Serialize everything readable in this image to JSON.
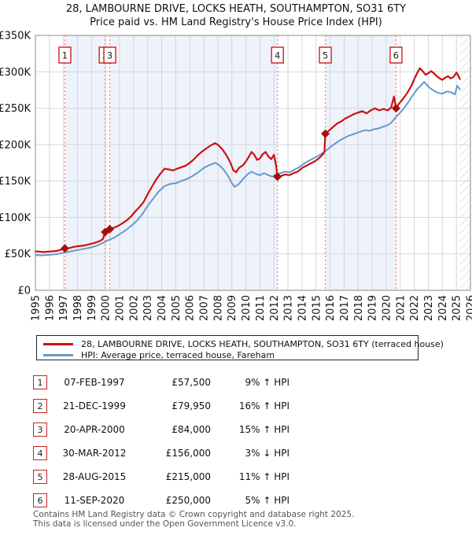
{
  "header": {
    "line1": "28, LAMBOURNE DRIVE, LOCKS HEATH, SOUTHAMPTON, SO31 6TY",
    "line2": "Price paid vs. HM Land Registry's House Price Index (HPI)"
  },
  "chart_data": {
    "type": "line",
    "title": "28, LAMBOURNE DRIVE, LOCKS HEATH, SOUTHAMPTON, SO31 6TY",
    "subtitle": "Price paid vs. HM Land Registry's House Price Index (HPI)",
    "x_range": [
      1995,
      2026
    ],
    "y_range_k": [
      0,
      350
    ],
    "grid": true,
    "x_ticks": [
      1995,
      1996,
      1997,
      1998,
      1999,
      2000,
      2001,
      2002,
      2003,
      2004,
      2005,
      2006,
      2007,
      2008,
      2009,
      2010,
      2011,
      2012,
      2013,
      2014,
      2015,
      2016,
      2017,
      2018,
      2019,
      2020,
      2021,
      2022,
      2023,
      2024,
      2025,
      2026
    ],
    "y_ticks": [
      {
        "v": 0,
        "label": "£0"
      },
      {
        "v": 50,
        "label": "£50K"
      },
      {
        "v": 100,
        "label": "£100K"
      },
      {
        "v": 150,
        "label": "£150K"
      },
      {
        "v": 200,
        "label": "£200K"
      },
      {
        "v": 250,
        "label": "£250K"
      },
      {
        "v": 300,
        "label": "£300K"
      },
      {
        "v": 350,
        "label": "£350K"
      }
    ],
    "colors": {
      "price_line": "#cc1111",
      "marker": "#aa0c0c",
      "hpi_line": "#6699cc",
      "dashed_event": "#f08080",
      "grid_line": "#d4d7dc",
      "plot_border": "#8a8a8a",
      "ownership_band": "#eef2fa",
      "hatch_line": "#c9c9c9",
      "flag_border": "#cc2020",
      "flag_text": "#222222"
    },
    "ownership_bands": [
      [
        1997.1,
        1999.97
      ],
      [
        2000.3,
        2012.25
      ],
      [
        2015.66,
        2020.7
      ]
    ],
    "future_hatch": [
      2025.25,
      2026
    ],
    "sales": [
      {
        "n": "1",
        "x": 1997.1,
        "price_k": 57.5
      },
      {
        "n": "2",
        "x": 1999.97,
        "price_k": 79.95
      },
      {
        "n": "3",
        "x": 2000.3,
        "price_k": 84
      },
      {
        "n": "4",
        "x": 2012.25,
        "price_k": 156
      },
      {
        "n": "5",
        "x": 2015.66,
        "price_k": 215
      },
      {
        "n": "6",
        "x": 2020.7,
        "price_k": 250
      }
    ],
    "series": [
      {
        "name": "28, LAMBOURNE DRIVE, LOCKS HEATH, SOUTHAMPTON, SO31 6TY (terraced house)",
        "color": "#cc1111",
        "width": 2.2,
        "points": [
          [
            1995,
            53.5
          ],
          [
            1995.3,
            53
          ],
          [
            1995.6,
            52.5
          ],
          [
            1995.9,
            53
          ],
          [
            1996.2,
            53.5
          ],
          [
            1996.5,
            54
          ],
          [
            1996.8,
            55.5
          ],
          [
            1997.1,
            57.5
          ],
          [
            1997.4,
            58
          ],
          [
            1997.7,
            59.5
          ],
          [
            1998,
            60.5
          ],
          [
            1998.3,
            61
          ],
          [
            1998.6,
            62
          ],
          [
            1998.9,
            63.5
          ],
          [
            1999.2,
            65
          ],
          [
            1999.5,
            67
          ],
          [
            1999.8,
            70
          ],
          [
            1999.97,
            80
          ],
          [
            2000.3,
            84
          ],
          [
            2000.6,
            86
          ],
          [
            2000.9,
            88.5
          ],
          [
            2001.2,
            92
          ],
          [
            2001.5,
            96
          ],
          [
            2001.8,
            101
          ],
          [
            2002.1,
            108
          ],
          [
            2002.4,
            114
          ],
          [
            2002.7,
            121
          ],
          [
            2003,
            132
          ],
          [
            2003.3,
            142
          ],
          [
            2003.6,
            152
          ],
          [
            2003.9,
            160
          ],
          [
            2004.2,
            167
          ],
          [
            2004.5,
            166
          ],
          [
            2004.8,
            164.5
          ],
          [
            2005.1,
            167
          ],
          [
            2005.4,
            169
          ],
          [
            2005.7,
            171
          ],
          [
            2006,
            175
          ],
          [
            2006.3,
            180
          ],
          [
            2006.6,
            186
          ],
          [
            2006.9,
            191
          ],
          [
            2007.2,
            195
          ],
          [
            2007.5,
            199
          ],
          [
            2007.8,
            202
          ],
          [
            2008,
            200
          ],
          [
            2008.3,
            194
          ],
          [
            2008.6,
            186
          ],
          [
            2008.9,
            175
          ],
          [
            2009.1,
            165
          ],
          [
            2009.3,
            162
          ],
          [
            2009.5,
            168
          ],
          [
            2009.8,
            172
          ],
          [
            2010,
            177
          ],
          [
            2010.2,
            183
          ],
          [
            2010.4,
            190
          ],
          [
            2010.6,
            186
          ],
          [
            2010.8,
            179
          ],
          [
            2011,
            181
          ],
          [
            2011.2,
            187
          ],
          [
            2011.4,
            190
          ],
          [
            2011.6,
            184
          ],
          [
            2011.8,
            180
          ],
          [
            2012,
            186
          ],
          [
            2012.15,
            172
          ],
          [
            2012.25,
            156
          ],
          [
            2012.5,
            157
          ],
          [
            2012.8,
            159
          ],
          [
            2013.1,
            158
          ],
          [
            2013.4,
            161
          ],
          [
            2013.7,
            163
          ],
          [
            2014,
            168
          ],
          [
            2014.3,
            171
          ],
          [
            2014.6,
            174
          ],
          [
            2014.9,
            177
          ],
          [
            2015.2,
            181
          ],
          [
            2015.45,
            186
          ],
          [
            2015.6,
            190
          ],
          [
            2015.66,
            215
          ],
          [
            2015.9,
            219
          ],
          [
            2016.2,
            224
          ],
          [
            2016.5,
            229
          ],
          [
            2016.8,
            232
          ],
          [
            2017.1,
            236
          ],
          [
            2017.4,
            239
          ],
          [
            2017.7,
            242
          ],
          [
            2018,
            244
          ],
          [
            2018.3,
            246
          ],
          [
            2018.6,
            243
          ],
          [
            2018.9,
            247
          ],
          [
            2019.2,
            250
          ],
          [
            2019.5,
            247
          ],
          [
            2019.8,
            249
          ],
          [
            2020.1,
            247
          ],
          [
            2020.35,
            251
          ],
          [
            2020.55,
            266
          ],
          [
            2020.7,
            250
          ],
          [
            2020.9,
            256
          ],
          [
            2021.2,
            263
          ],
          [
            2021.5,
            271
          ],
          [
            2021.8,
            281
          ],
          [
            2022,
            290
          ],
          [
            2022.2,
            298
          ],
          [
            2022.4,
            305
          ],
          [
            2022.6,
            301
          ],
          [
            2022.8,
            296
          ],
          [
            2023,
            298
          ],
          [
            2023.2,
            301
          ],
          [
            2023.4,
            298
          ],
          [
            2023.6,
            294
          ],
          [
            2023.8,
            291
          ],
          [
            2024,
            289
          ],
          [
            2024.2,
            292
          ],
          [
            2024.4,
            294
          ],
          [
            2024.6,
            291
          ],
          [
            2024.8,
            293
          ],
          [
            2025,
            299
          ],
          [
            2025.1,
            296
          ],
          [
            2025.25,
            290
          ]
        ]
      },
      {
        "name": "HPI: Average price, terraced house, Fareham",
        "color": "#6699cc",
        "width": 2,
        "points": [
          [
            1995,
            48.5
          ],
          [
            1995.4,
            48
          ],
          [
            1995.8,
            48.5
          ],
          [
            1996.2,
            49
          ],
          [
            1996.6,
            50
          ],
          [
            1997,
            51.5
          ],
          [
            1997.4,
            53
          ],
          [
            1997.8,
            54.5
          ],
          [
            1998.2,
            56
          ],
          [
            1998.6,
            57.5
          ],
          [
            1999,
            59
          ],
          [
            1999.4,
            61.5
          ],
          [
            1999.8,
            65
          ],
          [
            2000.2,
            69
          ],
          [
            2000.6,
            72
          ],
          [
            2001,
            77
          ],
          [
            2001.4,
            82
          ],
          [
            2001.8,
            88
          ],
          [
            2002.2,
            95
          ],
          [
            2002.6,
            104
          ],
          [
            2003,
            116
          ],
          [
            2003.4,
            126
          ],
          [
            2003.8,
            136
          ],
          [
            2004.2,
            143
          ],
          [
            2004.6,
            146
          ],
          [
            2005,
            147
          ],
          [
            2005.4,
            150
          ],
          [
            2005.8,
            153
          ],
          [
            2006.2,
            157
          ],
          [
            2006.6,
            162
          ],
          [
            2007,
            168
          ],
          [
            2007.4,
            172
          ],
          [
            2007.8,
            175
          ],
          [
            2008.1,
            172
          ],
          [
            2008.4,
            166
          ],
          [
            2008.7,
            158
          ],
          [
            2009,
            147
          ],
          [
            2009.2,
            142
          ],
          [
            2009.5,
            146
          ],
          [
            2009.8,
            153
          ],
          [
            2010.1,
            159
          ],
          [
            2010.4,
            163
          ],
          [
            2010.7,
            160
          ],
          [
            2011,
            158
          ],
          [
            2011.3,
            161
          ],
          [
            2011.6,
            158
          ],
          [
            2011.9,
            156
          ],
          [
            2012.2,
            160
          ],
          [
            2012.5,
            161
          ],
          [
            2012.8,
            163
          ],
          [
            2013.1,
            162
          ],
          [
            2013.4,
            165
          ],
          [
            2013.7,
            168
          ],
          [
            2014,
            172
          ],
          [
            2014.3,
            176
          ],
          [
            2014.6,
            179
          ],
          [
            2014.9,
            182
          ],
          [
            2015.2,
            185
          ],
          [
            2015.5,
            189
          ],
          [
            2015.8,
            193
          ],
          [
            2016.1,
            198
          ],
          [
            2016.4,
            202
          ],
          [
            2016.7,
            206
          ],
          [
            2017,
            209
          ],
          [
            2017.3,
            212
          ],
          [
            2017.6,
            214
          ],
          [
            2017.9,
            216
          ],
          [
            2018.2,
            218
          ],
          [
            2018.5,
            220
          ],
          [
            2018.8,
            219
          ],
          [
            2019.1,
            221
          ],
          [
            2019.4,
            222
          ],
          [
            2019.7,
            224
          ],
          [
            2020,
            226
          ],
          [
            2020.3,
            229
          ],
          [
            2020.7,
            238
          ],
          [
            2021,
            244
          ],
          [
            2021.3,
            251
          ],
          [
            2021.6,
            259
          ],
          [
            2021.9,
            268
          ],
          [
            2022.2,
            276
          ],
          [
            2022.5,
            282
          ],
          [
            2022.7,
            286
          ],
          [
            2022.9,
            282
          ],
          [
            2023.1,
            278
          ],
          [
            2023.4,
            274
          ],
          [
            2023.7,
            271
          ],
          [
            2024,
            270
          ],
          [
            2024.3,
            273
          ],
          [
            2024.6,
            272
          ],
          [
            2024.9,
            269
          ],
          [
            2025.05,
            281
          ],
          [
            2025.25,
            276
          ]
        ]
      }
    ]
  },
  "legend": {
    "items": [
      {
        "label": "28, LAMBOURNE DRIVE, LOCKS HEATH, SOUTHAMPTON, SO31 6TY (terraced house)",
        "color": "#cc1111"
      },
      {
        "label": "HPI: Average price, terraced house, Fareham",
        "color": "#6699cc"
      }
    ]
  },
  "table": {
    "rows": [
      {
        "num": "1",
        "date": "07-FEB-1997",
        "price": "£57,500",
        "hpi": "9% ↑ HPI"
      },
      {
        "num": "2",
        "date": "21-DEC-1999",
        "price": "£79,950",
        "hpi": "16% ↑ HPI"
      },
      {
        "num": "3",
        "date": "20-APR-2000",
        "price": "£84,000",
        "hpi": "15% ↑ HPI"
      },
      {
        "num": "4",
        "date": "30-MAR-2012",
        "price": "£156,000",
        "hpi": "3% ↓ HPI"
      },
      {
        "num": "5",
        "date": "28-AUG-2015",
        "price": "£215,000",
        "hpi": "11% ↑ HPI"
      },
      {
        "num": "6",
        "date": "11-SEP-2020",
        "price": "£250,000",
        "hpi": "5% ↑ HPI"
      }
    ]
  },
  "footer": {
    "line1": "Contains HM Land Registry data © Crown copyright and database right 2025.",
    "line2": "This data is licensed under the Open Government Licence v3.0."
  }
}
